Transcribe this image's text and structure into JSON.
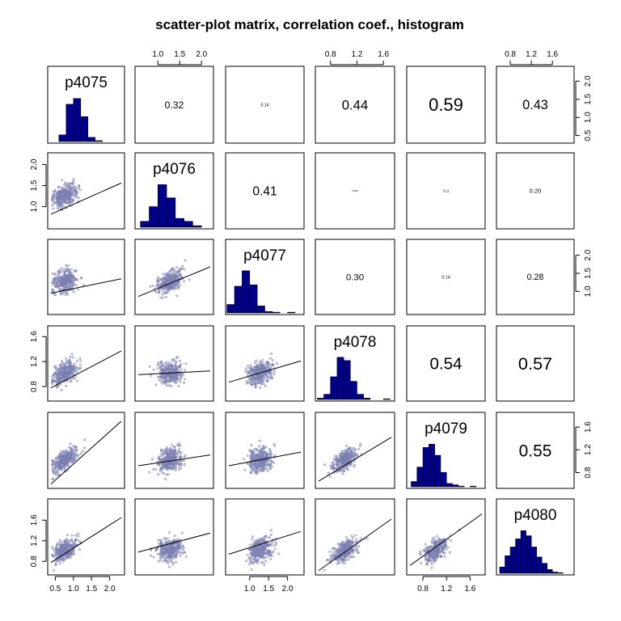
{
  "chart_data": {
    "type": "scatter",
    "title": "scatter-plot matrix, correlation coef., histogram",
    "variables": [
      "p4075",
      "p4076",
      "p4077",
      "p4078",
      "p4079",
      "p4080"
    ],
    "axis_ticks": {
      "p4075": [
        0.5,
        1.0,
        1.5,
        2.0
      ],
      "p4076": [
        1.0,
        1.5,
        2.0
      ],
      "p4077": [
        1.0,
        1.5,
        2.0
      ],
      "p4078": [
        0.8,
        1.2,
        1.6
      ],
      "p4079": [
        0.8,
        1.2,
        1.6
      ],
      "p4080": [
        0.8,
        1.2,
        1.6
      ]
    },
    "tick_labels": {
      "p4075": [
        "0.5",
        "1.0",
        "1.5",
        "2.0"
      ],
      "p4076": [
        "1.0",
        "1.5",
        "2.0"
      ],
      "p4077": [
        "1.0",
        "1.5",
        "2.0"
      ],
      "p4078": [
        "0.8",
        "1.2",
        "1.6"
      ],
      "p4079": [
        "0.8",
        "1.2",
        "1.6"
      ],
      "p4080": [
        "0.8",
        "1.2",
        "1.6"
      ]
    },
    "ranges": {
      "p4075": [
        0.38,
        2.32
      ],
      "p4076": [
        0.55,
        2.2
      ],
      "p4077": [
        0.45,
        2.35
      ],
      "p4078": [
        0.62,
        1.72
      ],
      "p4079": [
        0.58,
        1.8
      ],
      "p4080": [
        0.6,
        1.95
      ]
    },
    "correlations": [
      {
        "row": 0,
        "col": 1,
        "value": 0.32,
        "label": "0.32"
      },
      {
        "row": 0,
        "col": 2,
        "value": 0.14,
        "label": "0.14"
      },
      {
        "row": 0,
        "col": 3,
        "value": 0.44,
        "label": "0.44"
      },
      {
        "row": 0,
        "col": 4,
        "value": 0.59,
        "label": "0.59"
      },
      {
        "row": 0,
        "col": 5,
        "value": 0.43,
        "label": "0.43"
      },
      {
        "row": 1,
        "col": 2,
        "value": 0.41,
        "label": "0.41"
      },
      {
        "row": 1,
        "col": 3,
        "value": 0.005,
        "label": "0.005"
      },
      {
        "row": 1,
        "col": 4,
        "value": 0.11,
        "label": "0.11"
      },
      {
        "row": 1,
        "col": 5,
        "value": 0.2,
        "label": "0.20"
      },
      {
        "row": 2,
        "col": 3,
        "value": 0.3,
        "label": "0.30"
      },
      {
        "row": 2,
        "col": 4,
        "value": 0.14,
        "label": "0.14"
      },
      {
        "row": 2,
        "col": 5,
        "value": 0.28,
        "label": "0.28"
      },
      {
        "row": 3,
        "col": 4,
        "value": 0.54,
        "label": "0.54"
      },
      {
        "row": 3,
        "col": 5,
        "value": 0.57,
        "label": "0.57"
      },
      {
        "row": 4,
        "col": 5,
        "value": 0.55,
        "label": "0.55"
      }
    ],
    "histograms": {
      "p4075": {
        "breaks": [
          0.6,
          0.8,
          1.0,
          1.2,
          1.4,
          1.6,
          1.8,
          2.0,
          2.2
        ],
        "heights": [
          8,
          45,
          52,
          30,
          5,
          1,
          0,
          0
        ]
      },
      "p4076": {
        "breaks": [
          0.6,
          0.8,
          1.0,
          1.2,
          1.4,
          1.6,
          1.8,
          2.0
        ],
        "heights": [
          8,
          28,
          58,
          40,
          12,
          8,
          2
        ]
      },
      "p4077": {
        "breaks": [
          0.4,
          0.6,
          0.8,
          1.0,
          1.2,
          1.4,
          1.6,
          1.8,
          2.0,
          2.2
        ],
        "heights": [
          12,
          38,
          60,
          40,
          10,
          2,
          1,
          0,
          1
        ]
      },
      "p4078": {
        "breaks": [
          0.6,
          0.7,
          0.8,
          0.9,
          1.0,
          1.1,
          1.2,
          1.3,
          1.4,
          1.5,
          1.6,
          1.7
        ],
        "heights": [
          2,
          8,
          35,
          65,
          60,
          28,
          8,
          2,
          0,
          0,
          1
        ]
      },
      "p4079": {
        "breaks": [
          0.6,
          0.7,
          0.8,
          0.9,
          1.0,
          1.1,
          1.2,
          1.3,
          1.4,
          1.5,
          1.6,
          1.7,
          1.8
        ],
        "heights": [
          8,
          30,
          60,
          65,
          48,
          22,
          5,
          3,
          1,
          0,
          1,
          0
        ]
      },
      "p4080": {
        "breaks": [
          0.6,
          0.7,
          0.8,
          0.9,
          1.0,
          1.1,
          1.2,
          1.3,
          1.4,
          1.5,
          1.6,
          1.7,
          1.8
        ],
        "heights": [
          10,
          28,
          42,
          55,
          68,
          60,
          42,
          26,
          16,
          6,
          2,
          1
        ]
      }
    },
    "regression_lines": [
      {
        "row": 1,
        "col": 0,
        "x": [
          0.38,
          2.32
        ],
        "y": [
          0.82,
          1.56
        ]
      },
      {
        "row": 2,
        "col": 0,
        "x": [
          0.38,
          2.32
        ],
        "y": [
          0.95,
          1.35
        ]
      },
      {
        "row": 2,
        "col": 1,
        "x": [
          0.55,
          2.2
        ],
        "y": [
          0.86,
          1.68
        ]
      },
      {
        "row": 3,
        "col": 0,
        "x": [
          0.38,
          2.32
        ],
        "y": [
          0.78,
          1.37
        ]
      },
      {
        "row": 3,
        "col": 1,
        "x": [
          0.55,
          2.2
        ],
        "y": [
          0.99,
          1.05
        ]
      },
      {
        "row": 3,
        "col": 2,
        "x": [
          0.45,
          2.35
        ],
        "y": [
          0.87,
          1.21
        ]
      },
      {
        "row": 4,
        "col": 0,
        "x": [
          0.38,
          2.32
        ],
        "y": [
          0.6,
          1.7
        ]
      },
      {
        "row": 4,
        "col": 1,
        "x": [
          0.55,
          2.2
        ],
        "y": [
          0.92,
          1.11
        ]
      },
      {
        "row": 4,
        "col": 2,
        "x": [
          0.45,
          2.35
        ],
        "y": [
          0.92,
          1.16
        ]
      },
      {
        "row": 4,
        "col": 3,
        "x": [
          0.62,
          1.72
        ],
        "y": [
          0.65,
          1.42
        ]
      },
      {
        "row": 5,
        "col": 0,
        "x": [
          0.38,
          2.32
        ],
        "y": [
          0.78,
          1.65
        ]
      },
      {
        "row": 5,
        "col": 1,
        "x": [
          0.55,
          2.2
        ],
        "y": [
          0.98,
          1.35
        ]
      },
      {
        "row": 5,
        "col": 2,
        "x": [
          0.45,
          2.35
        ],
        "y": [
          0.94,
          1.38
        ]
      },
      {
        "row": 5,
        "col": 3,
        "x": [
          0.62,
          1.72
        ],
        "y": [
          0.62,
          1.62
        ]
      },
      {
        "row": 5,
        "col": 4,
        "x": [
          0.58,
          1.8
        ],
        "y": [
          0.72,
          1.72
        ]
      }
    ],
    "point_color": "#7b7fb0",
    "hist_fill": "#00008b",
    "grid": false
  }
}
